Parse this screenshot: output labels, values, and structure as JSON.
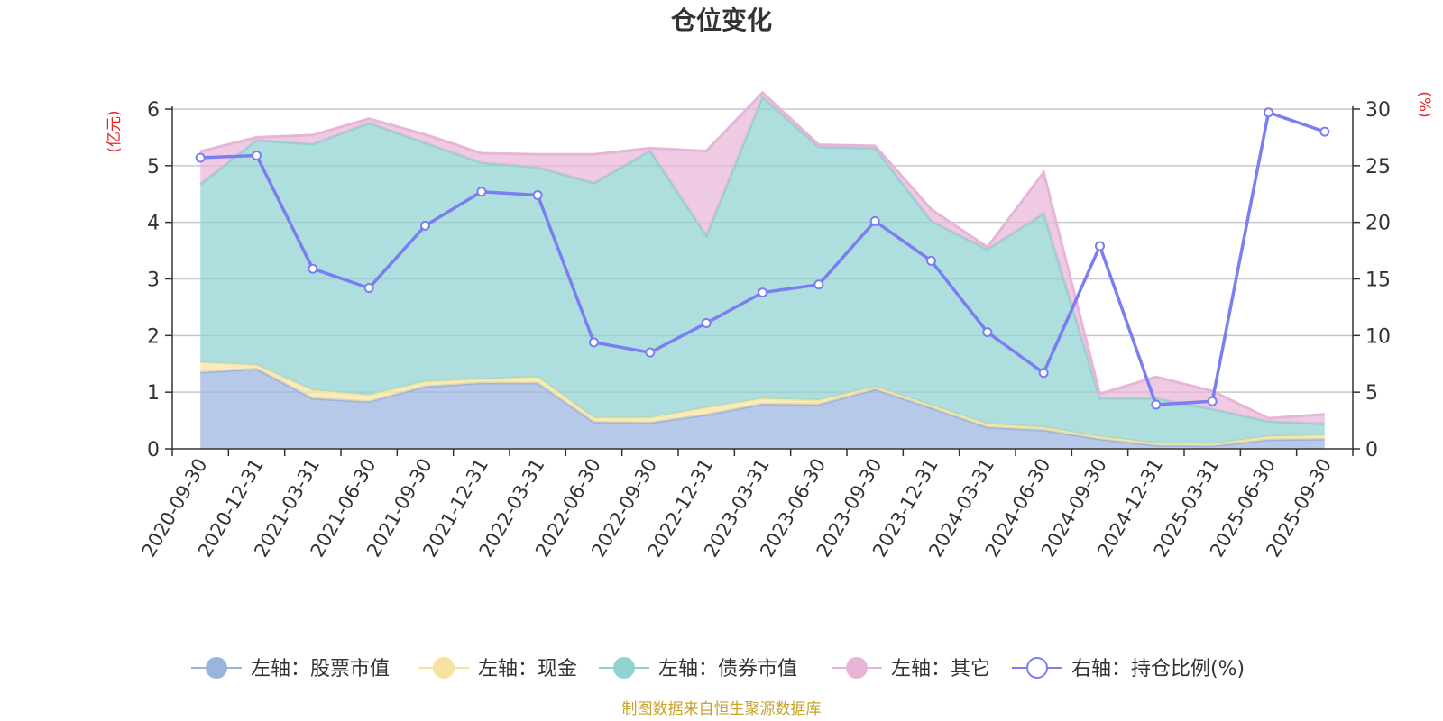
{
  "chart_data": {
    "type": "area",
    "title": "仓位变化",
    "left_axis": {
      "unit": "(亿元)",
      "ylim": [
        0,
        6
      ],
      "ticks": [
        "0",
        "1",
        "2",
        "3",
        "4",
        "5",
        "6"
      ]
    },
    "right_axis": {
      "unit": "(%)",
      "ylim": [
        0,
        30
      ],
      "ticks": [
        "0",
        "5",
        "10",
        "15",
        "20",
        "25",
        "30"
      ]
    },
    "categories": [
      "2020-09-30",
      "2020-12-31",
      "2021-03-31",
      "2021-06-30",
      "2021-09-30",
      "2021-12-31",
      "2022-03-31",
      "2022-06-30",
      "2022-09-30",
      "2022-12-31",
      "2023-03-31",
      "2023-06-30",
      "2023-09-30",
      "2023-12-31",
      "2024-03-31",
      "2024-06-30",
      "2024-09-30",
      "2024-12-31",
      "2025-03-31",
      "2025-06-30",
      "2025-09-30"
    ],
    "series": [
      {
        "name": "左轴：股票市值",
        "axis": "left",
        "stack": true,
        "color": "#9bb4df",
        "values": [
          1.35,
          1.41,
          0.89,
          0.83,
          1.1,
          1.16,
          1.16,
          0.47,
          0.46,
          0.6,
          0.79,
          0.78,
          1.05,
          0.72,
          0.38,
          0.33,
          0.17,
          0.06,
          0.05,
          0.16,
          0.17
        ]
      },
      {
        "name": "左轴：现金",
        "axis": "left",
        "stack": true,
        "color": "#f7e3a1",
        "values": [
          0.18,
          0.07,
          0.15,
          0.12,
          0.09,
          0.07,
          0.11,
          0.08,
          0.09,
          0.13,
          0.1,
          0.08,
          0.05,
          0.05,
          0.06,
          0.05,
          0.05,
          0.04,
          0.04,
          0.06,
          0.07
        ]
      },
      {
        "name": "左轴：债券市值",
        "axis": "left",
        "stack": true,
        "color": "#8fd3d1",
        "values": [
          3.14,
          3.97,
          4.34,
          4.8,
          4.21,
          3.82,
          3.7,
          4.14,
          4.71,
          3.03,
          5.32,
          4.47,
          4.21,
          3.25,
          3.08,
          3.77,
          0.67,
          0.79,
          0.61,
          0.26,
          0.2
        ]
      },
      {
        "name": "左轴：其它",
        "axis": "left",
        "stack": true,
        "color": "#e7b5d8",
        "values": [
          0.58,
          0.05,
          0.16,
          0.08,
          0.15,
          0.17,
          0.23,
          0.51,
          0.05,
          1.5,
          0.08,
          0.04,
          0.04,
          0.21,
          0.04,
          0.73,
          0.08,
          0.38,
          0.32,
          0.06,
          0.17
        ]
      },
      {
        "name": "右轴：持仓比例(%)",
        "axis": "right",
        "type": "line",
        "color": "#7b7ef0",
        "values": [
          25.7,
          25.9,
          15.9,
          14.2,
          19.7,
          22.7,
          22.4,
          9.4,
          8.5,
          11.1,
          13.8,
          14.5,
          20.1,
          16.6,
          10.3,
          6.7,
          17.9,
          3.9,
          4.2,
          29.7,
          28.0
        ]
      }
    ],
    "legend_position": "bottom",
    "grid": true
  },
  "source_text": "制图数据来自恒生聚源数据库"
}
